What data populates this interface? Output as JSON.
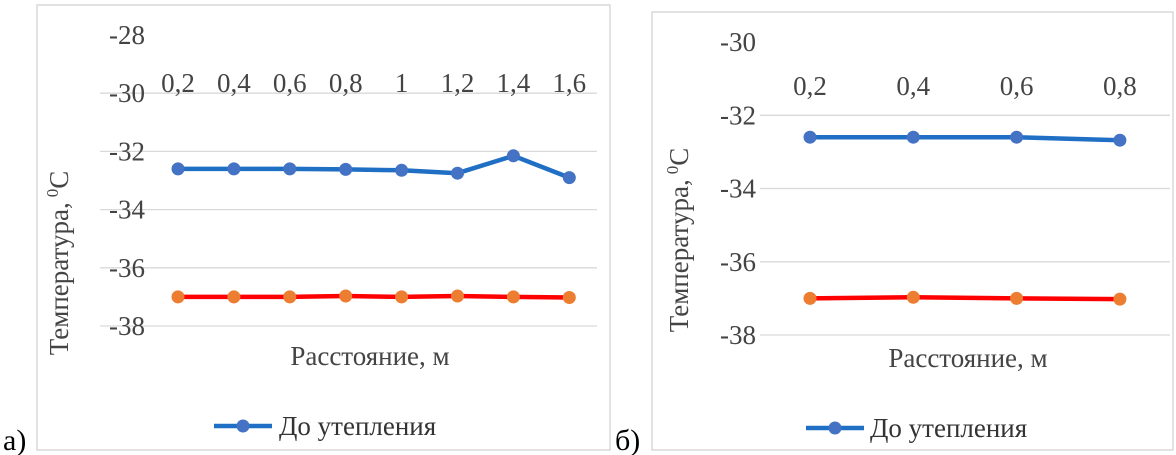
{
  "chart_data": [
    {
      "type": "line",
      "panel_label": "а)",
      "xlabel": "Расстояние, м",
      "ylabel": "Температура,",
      "ylabel_sup": "0",
      "ylabel_unit": "С",
      "categories": [
        "0,2",
        "0,4",
        "0,6",
        "0,8",
        "1",
        "1,2",
        "1,4",
        "1,6"
      ],
      "y_ticks": [
        "-28",
        "-30",
        "-32",
        "-34",
        "-36",
        "-38"
      ],
      "ylim": [
        -38,
        -28
      ],
      "grid": true,
      "legend_position": "bottom",
      "series": [
        {
          "name": "До утепления",
          "color": "#1F6FC5",
          "marker_color": "#4472C4",
          "values": [
            -32.6,
            -32.6,
            -32.6,
            -32.62,
            -32.65,
            -32.75,
            -32.15,
            -32.9
          ]
        },
        {
          "color": "#FF0000",
          "marker_color": "#ED7D31",
          "values": [
            -37.0,
            -37.0,
            -37.0,
            -36.97,
            -37.0,
            -36.97,
            -37.0,
            -37.02
          ]
        }
      ]
    },
    {
      "type": "line",
      "panel_label": "б)",
      "xlabel": "Расстояние, м",
      "ylabel": "Температура,",
      "ylabel_sup": "0",
      "ylabel_unit": "С",
      "categories": [
        "0,2",
        "0,4",
        "0,6",
        "0,8"
      ],
      "y_ticks": [
        "-30",
        "-32",
        "-34",
        "-36",
        "-38"
      ],
      "ylim": [
        -38,
        -30
      ],
      "grid": true,
      "legend_position": "bottom",
      "series": [
        {
          "name": "До утепления",
          "color": "#1F6FC5",
          "marker_color": "#4472C4",
          "values": [
            -32.6,
            -32.6,
            -32.6,
            -32.68
          ]
        },
        {
          "color": "#FF0000",
          "marker_color": "#ED7D31",
          "values": [
            -37.0,
            -36.97,
            -37.0,
            -37.02
          ]
        }
      ]
    }
  ]
}
